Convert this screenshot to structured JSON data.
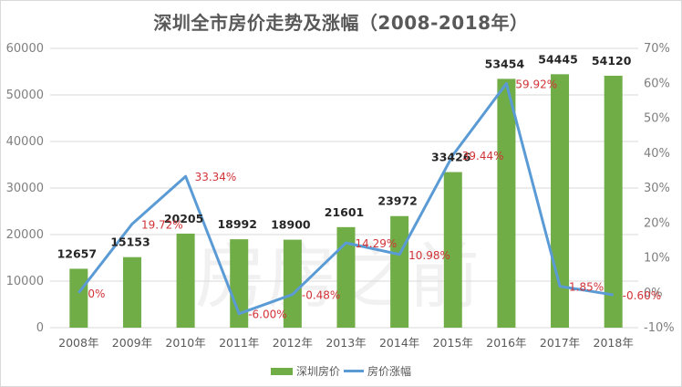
{
  "title": "深圳全市房价走势及涨幅（2008-2018年）",
  "legend": {
    "bar_label": "深圳房价",
    "line_label": "房价涨幅"
  },
  "colors": {
    "bar": "#70ad47",
    "line": "#5b9bd5",
    "pct_label": "#d13438",
    "value_label": "#262626",
    "grid": "#d9d9d9"
  },
  "watermark": "房房之前",
  "chart_data": {
    "type": "bar+line",
    "title": "深圳全市房价走势及涨幅（2008-2018年）",
    "categories": [
      "2008年",
      "2009年",
      "2010年",
      "2011年",
      "2012年",
      "2013年",
      "2014年",
      "2015年",
      "2016年",
      "2017年",
      "2018年"
    ],
    "series": [
      {
        "name": "深圳房价",
        "type": "bar",
        "axis": "left",
        "values": [
          12657,
          15153,
          20205,
          18992,
          18900,
          21601,
          23972,
          33426,
          53454,
          54445,
          54120
        ],
        "labels": [
          "12657",
          "15153",
          "20205",
          "18992",
          "18900",
          "21601",
          "23972",
          "33426",
          "53454",
          "54445",
          "54120"
        ]
      },
      {
        "name": "房价涨幅",
        "type": "line",
        "axis": "right",
        "values": [
          0,
          19.72,
          33.34,
          -6.0,
          -0.48,
          14.29,
          10.98,
          39.44,
          59.92,
          1.85,
          -0.6
        ],
        "labels": [
          "0%",
          "19.72%",
          "33.34%",
          "-6.00%",
          "-0.48%",
          "14.29%",
          "10.98%",
          "39.44%",
          "59.92%",
          "1.85%",
          "-0.60%"
        ]
      }
    ],
    "y_left": {
      "ylim": [
        0,
        60000
      ],
      "ticks": [
        "0",
        "10000",
        "20000",
        "30000",
        "40000",
        "50000",
        "60000"
      ]
    },
    "y_right": {
      "ylim": [
        -10,
        70
      ],
      "ticks": [
        "-10%",
        "0%",
        "10%",
        "20%",
        "30%",
        "40%",
        "50%",
        "60%",
        "70%"
      ]
    },
    "xlabel": "",
    "ylabel": "",
    "grid": true,
    "legend_position": "bottom"
  }
}
